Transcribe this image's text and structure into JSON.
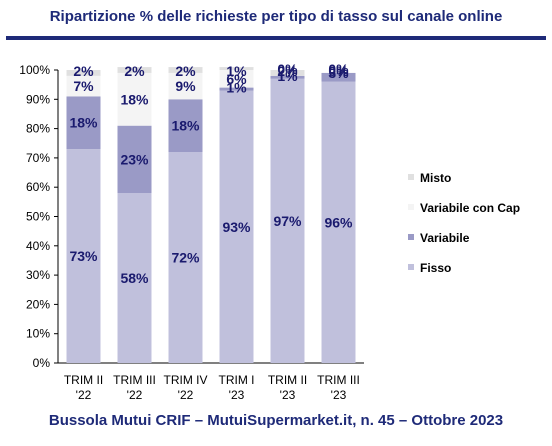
{
  "title": "Ripartizione % delle richieste per tipo di tasso sul canale online",
  "footer": "Bussola Mutui CRIF – MutuiSupermarket.it, n. 45 – Ottobre 2023",
  "chart_data": {
    "type": "bar",
    "stacked": true,
    "categories": [
      [
        "TRIM II",
        "'22"
      ],
      [
        "TRIM III",
        "'22"
      ],
      [
        "TRIM IV",
        "'22"
      ],
      [
        "TRIM I",
        "'23"
      ],
      [
        "TRIM II",
        "'23"
      ],
      [
        "TRIM III",
        "'23"
      ]
    ],
    "series": [
      {
        "name": "Fisso",
        "values": [
          73,
          58,
          72,
          93,
          97,
          96
        ],
        "labels": [
          "73%",
          "58%",
          "72%",
          "93%",
          "97%",
          "96%"
        ],
        "color": "#c0c0dc"
      },
      {
        "name": "Variabile",
        "values": [
          18,
          23,
          18,
          1,
          1,
          3
        ],
        "labels": [
          "18%",
          "23%",
          "18%",
          "1%",
          "1%",
          "3%"
        ],
        "color": "#9a9ac6"
      },
      {
        "name": "Variabile con Cap",
        "values": [
          7,
          18,
          9,
          6,
          0,
          0
        ],
        "labels": [
          "7%",
          "18%",
          "9%",
          "6%",
          "0%",
          "0%"
        ],
        "color": "#f4f4f4"
      },
      {
        "name": "Misto",
        "values": [
          2,
          2,
          2,
          1,
          2,
          0
        ],
        "labels": [
          "2%",
          "2%",
          "2%",
          "1%",
          "2%",
          "0%"
        ],
        "color": "#e0e0e0"
      }
    ],
    "ylim": [
      0,
      100
    ],
    "yticks": [
      "0%",
      "10%",
      "20%",
      "30%",
      "40%",
      "50%",
      "60%",
      "70%",
      "80%",
      "90%",
      "100%"
    ],
    "legend_order": [
      "Misto",
      "Variabile con Cap",
      "Variabile",
      "Fisso"
    ],
    "legend_position": "right",
    "grid": false
  }
}
